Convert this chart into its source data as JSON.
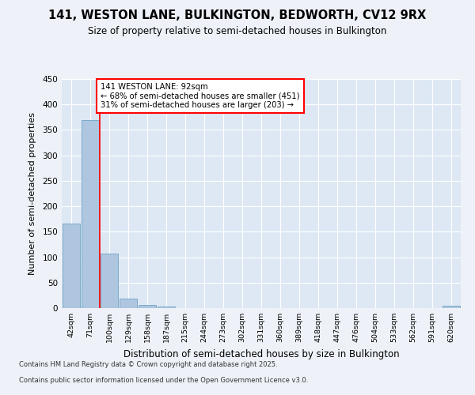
{
  "title1": "141, WESTON LANE, BULKINGTON, BEDWORTH, CV12 9RX",
  "title2": "Size of property relative to semi-detached houses in Bulkington",
  "xlabel": "Distribution of semi-detached houses by size in Bulkington",
  "ylabel": "Number of semi-detached properties",
  "categories": [
    "42sqm",
    "71sqm",
    "100sqm",
    "129sqm",
    "158sqm",
    "187sqm",
    "215sqm",
    "244sqm",
    "273sqm",
    "302sqm",
    "331sqm",
    "360sqm",
    "389sqm",
    "418sqm",
    "447sqm",
    "476sqm",
    "504sqm",
    "533sqm",
    "562sqm",
    "591sqm",
    "620sqm"
  ],
  "values": [
    166,
    370,
    107,
    18,
    6,
    3,
    0,
    0,
    0,
    0,
    0,
    0,
    0,
    0,
    0,
    0,
    0,
    0,
    0,
    0,
    4
  ],
  "bar_color": "#aec6e0",
  "bar_edge_color": "#7aaac8",
  "vline_x": 1.5,
  "vline_color": "red",
  "annotation_line1": "141 WESTON LANE: 92sqm",
  "annotation_line2": "← 68% of semi-detached houses are smaller (451)",
  "annotation_line3": "31% of semi-detached houses are larger (203) →",
  "annotation_box_color": "white",
  "annotation_box_edge": "red",
  "ylim": [
    0,
    450
  ],
  "yticks": [
    0,
    50,
    100,
    150,
    200,
    250,
    300,
    350,
    400,
    450
  ],
  "footer1": "Contains HM Land Registry data © Crown copyright and database right 2025.",
  "footer2": "Contains public sector information licensed under the Open Government Licence v3.0.",
  "bg_color": "#eef2f8",
  "plot_bg_color": "#dde8f4"
}
